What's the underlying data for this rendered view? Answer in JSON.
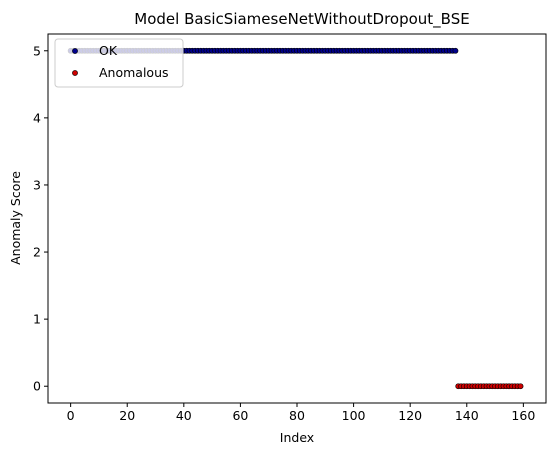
{
  "chart_data": {
    "type": "scatter",
    "title": "Model BasicSiameseNetWithoutDropout_BSE",
    "xlabel": "Index",
    "ylabel": "Anomaly Score",
    "xlim": [
      -8,
      168
    ],
    "ylim": [
      -0.25,
      5.25
    ],
    "xticks": [
      0,
      20,
      40,
      60,
      80,
      100,
      120,
      140,
      160
    ],
    "yticks": [
      0,
      1,
      2,
      3,
      4,
      5
    ],
    "grid": false,
    "legend_position": "top-left",
    "series": [
      {
        "name": "OK",
        "color": "#00008b",
        "x_range": [
          0,
          136
        ],
        "y": 5
      },
      {
        "name": "Anomalous",
        "color": "#cc0000",
        "x_range": [
          137,
          159
        ],
        "y": 0
      }
    ]
  }
}
